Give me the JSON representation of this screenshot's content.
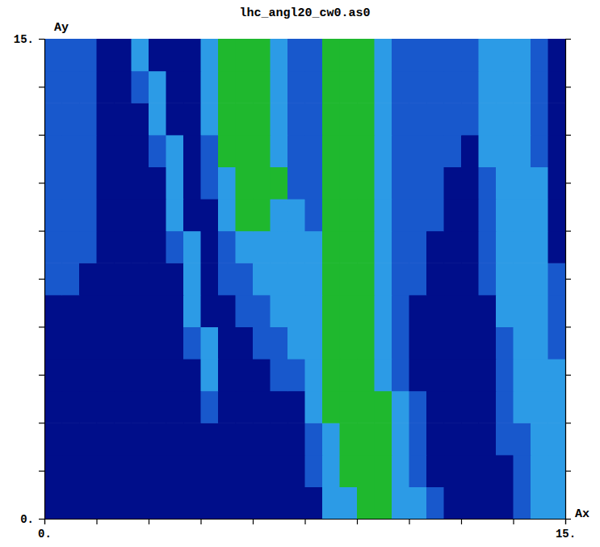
{
  "chart_data": {
    "type": "heatmap",
    "title": "lhc_angl20_cw0.as0",
    "xlabel": "Ax",
    "ylabel": "Ay",
    "xlim": [
      0,
      15
    ],
    "ylim": [
      0,
      15
    ],
    "xticks": [
      {
        "value": 0,
        "label": "0."
      },
      {
        "value": 1.5,
        "label": null
      },
      {
        "value": 3,
        "label": null
      },
      {
        "value": 4.5,
        "label": null
      },
      {
        "value": 6,
        "label": null
      },
      {
        "value": 7.5,
        "label": null
      },
      {
        "value": 9,
        "label": null
      },
      {
        "value": 10.5,
        "label": null
      },
      {
        "value": 12,
        "label": null
      },
      {
        "value": 13.5,
        "label": null
      },
      {
        "value": 15,
        "label": "15."
      }
    ],
    "yticks": [
      {
        "value": 0,
        "label": "0."
      },
      {
        "value": 1.5,
        "label": null
      },
      {
        "value": 3,
        "label": null
      },
      {
        "value": 4.5,
        "label": null
      },
      {
        "value": 6,
        "label": null
      },
      {
        "value": 7.5,
        "label": null
      },
      {
        "value": 9,
        "label": null
      },
      {
        "value": 10.5,
        "label": null
      },
      {
        "value": 12,
        "label": null
      },
      {
        "value": 13.5,
        "label": null
      },
      {
        "value": 15,
        "label": "15."
      }
    ],
    "zlim": [
      0,
      3
    ],
    "colors": [
      "#000e8a",
      "#1858cc",
      "#2c9be6",
      "#1fb82e"
    ],
    "x": [
      0.25,
      0.75,
      1.25,
      1.75,
      2.25,
      2.75,
      3.25,
      3.75,
      4.25,
      4.75,
      5.25,
      5.75,
      6.25,
      6.75,
      7.25,
      7.75,
      8.25,
      8.75,
      9.25,
      9.75,
      10.25,
      10.75,
      11.25,
      11.75,
      12.25,
      12.75,
      13.25,
      13.75,
      14.25,
      14.75
    ],
    "y": [
      0.5,
      1.5,
      2.5,
      3.5,
      4.5,
      5.5,
      6.5,
      7.5,
      8.5,
      9.5,
      10.5,
      11.5,
      12.5,
      13.5,
      14.5
    ],
    "z": [
      [
        0,
        0,
        0,
        0,
        0,
        0,
        0,
        0,
        0,
        0,
        0,
        0,
        0,
        0,
        0,
        0,
        2,
        2,
        3,
        3,
        2,
        2,
        1,
        0,
        0,
        0,
        0,
        1,
        2,
        2
      ],
      [
        0,
        0,
        0,
        0,
        0,
        0,
        0,
        0,
        0,
        0,
        0,
        0,
        0,
        0,
        0,
        1,
        2,
        3,
        3,
        3,
        2,
        1,
        0,
        0,
        0,
        0,
        0,
        1,
        2,
        2
      ],
      [
        0,
        0,
        0,
        0,
        0,
        0,
        0,
        0,
        0,
        0,
        0,
        0,
        0,
        0,
        0,
        1,
        2,
        3,
        3,
        3,
        2,
        1,
        0,
        0,
        0,
        0,
        1,
        1,
        2,
        2
      ],
      [
        0,
        0,
        0,
        0,
        0,
        0,
        0,
        0,
        0,
        1,
        0,
        0,
        0,
        0,
        0,
        2,
        3,
        3,
        3,
        3,
        2,
        1,
        0,
        0,
        0,
        0,
        1,
        2,
        2,
        2
      ],
      [
        0,
        0,
        0,
        0,
        0,
        0,
        0,
        0,
        0,
        2,
        0,
        0,
        0,
        1,
        1,
        2,
        3,
        3,
        3,
        2,
        1,
        0,
        0,
        0,
        0,
        0,
        1,
        2,
        2,
        2
      ],
      [
        0,
        0,
        0,
        0,
        0,
        0,
        0,
        0,
        1,
        2,
        0,
        0,
        1,
        1,
        2,
        2,
        3,
        3,
        3,
        2,
        1,
        0,
        0,
        0,
        0,
        0,
        1,
        2,
        2,
        1
      ],
      [
        0,
        0,
        0,
        0,
        0,
        0,
        0,
        0,
        2,
        0,
        0,
        1,
        1,
        2,
        2,
        2,
        3,
        3,
        3,
        2,
        1,
        0,
        0,
        0,
        0,
        0,
        2,
        2,
        2,
        1
      ],
      [
        1,
        1,
        0,
        0,
        0,
        0,
        0,
        0,
        2,
        0,
        1,
        1,
        2,
        2,
        2,
        2,
        3,
        3,
        3,
        2,
        1,
        1,
        0,
        0,
        0,
        1,
        2,
        2,
        2,
        1
      ],
      [
        1,
        1,
        1,
        0,
        0,
        0,
        0,
        1,
        2,
        0,
        1,
        2,
        2,
        2,
        2,
        2,
        3,
        3,
        3,
        2,
        1,
        1,
        0,
        0,
        0,
        1,
        2,
        2,
        2,
        0
      ],
      [
        1,
        1,
        1,
        0,
        0,
        0,
        0,
        2,
        0,
        0,
        2,
        3,
        3,
        2,
        2,
        1,
        3,
        3,
        3,
        2,
        1,
        1,
        1,
        0,
        0,
        1,
        2,
        2,
        2,
        0
      ],
      [
        1,
        1,
        1,
        0,
        0,
        0,
        0,
        2,
        0,
        1,
        2,
        3,
        3,
        3,
        1,
        1,
        3,
        3,
        3,
        2,
        1,
        1,
        1,
        0,
        0,
        1,
        2,
        2,
        2,
        0
      ],
      [
        1,
        1,
        1,
        0,
        0,
        0,
        1,
        2,
        0,
        1,
        3,
        3,
        3,
        2,
        1,
        1,
        3,
        3,
        3,
        2,
        1,
        1,
        1,
        1,
        0,
        2,
        2,
        2,
        1,
        0
      ],
      [
        1,
        1,
        1,
        0,
        0,
        0,
        2,
        0,
        0,
        2,
        3,
        3,
        3,
        2,
        1,
        1,
        3,
        3,
        3,
        2,
        1,
        1,
        1,
        1,
        1,
        2,
        2,
        2,
        1,
        0
      ],
      [
        1,
        1,
        1,
        0,
        0,
        1,
        2,
        0,
        0,
        2,
        3,
        3,
        3,
        2,
        1,
        1,
        3,
        3,
        3,
        2,
        1,
        1,
        1,
        1,
        1,
        2,
        2,
        2,
        1,
        0
      ],
      [
        1,
        1,
        1,
        0,
        0,
        2,
        0,
        0,
        0,
        2,
        3,
        3,
        3,
        2,
        1,
        1,
        3,
        3,
        3,
        2,
        1,
        1,
        1,
        1,
        1,
        2,
        2,
        2,
        1,
        0
      ]
    ]
  }
}
